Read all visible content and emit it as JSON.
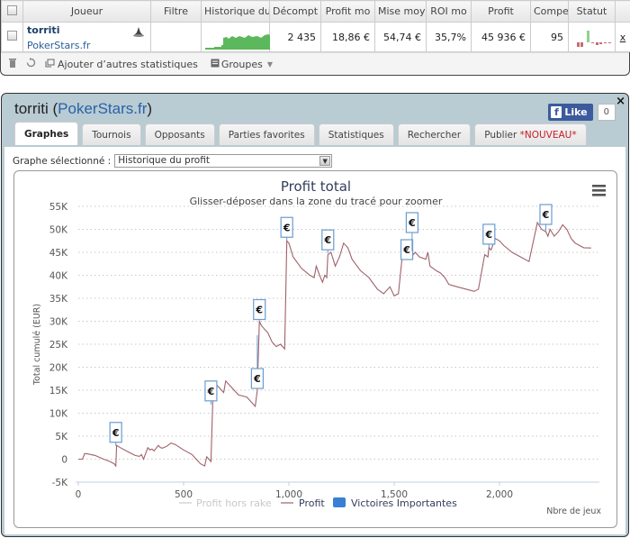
{
  "table": {
    "headers": [
      "Joueur",
      "Filtre",
      "Historique du",
      "Décompt",
      "Profit mo",
      "Mise moy",
      "ROI mo",
      "Profit",
      "Compe",
      "Statut"
    ],
    "rows": [
      {
        "player": "torriti",
        "site": "PokerStars.fr",
        "filter": "",
        "games": "2 435",
        "avg_profit": "18,86 €",
        "avg_stake": "54,74 €",
        "roi": "35,7%",
        "profit": "45 936 €",
        "ability": "95",
        "remove": "x"
      }
    ]
  },
  "toolbar": {
    "add_stats": "Ajouter d’autres statistiques",
    "groups": "Groupes"
  },
  "popup": {
    "player": "torriti",
    "site": "PokerStars.fr",
    "fb_like": "Like",
    "fb_count": "0",
    "close": "×",
    "tabs": [
      {
        "label": "Graphes",
        "active": true
      },
      {
        "label": "Tournois"
      },
      {
        "label": "Opposants"
      },
      {
        "label": "Parties favorites"
      },
      {
        "label": "Statistiques"
      },
      {
        "label": "Rechercher"
      },
      {
        "label": "Publier",
        "badge": "*NOUVEAU*"
      }
    ],
    "graph_select_label": "Graphe sélectionné :",
    "graph_select_value": "Historique du profit"
  },
  "colors": {
    "profit_line": "#a0606a",
    "marker_border": "#6a9ccf",
    "legend_victoires": "#3a7fd5",
    "panel_bg": "#b9cbd3",
    "link": "#2a62a8",
    "new_badge": "#c4202a"
  },
  "chart_data": {
    "type": "line",
    "title": "Profit total",
    "subtitle": "Glisser-déposer dans la zone du tracé pour zoomer",
    "xlabel": "Nbre de jeux",
    "ylabel": "Total cumulé (EUR)",
    "xlim": [
      0,
      2435
    ],
    "ylim": [
      -5000,
      55000
    ],
    "x_ticks": [
      "0",
      "500",
      "1,000",
      "1,500",
      "2,000"
    ],
    "y_ticks": [
      "-5K",
      "0",
      "5K",
      "10K",
      "15K",
      "20K",
      "25K",
      "30K",
      "35K",
      "40K",
      "45K",
      "50K",
      "55K"
    ],
    "grid": "horizontal dotted",
    "legend": [
      "Profit hors rake",
      "Profit",
      "Victoires Importantes"
    ],
    "legend_position": "bottom",
    "series": [
      {
        "name": "Profit",
        "x": [
          0,
          20,
          30,
          40,
          80,
          120,
          150,
          170,
          178,
          182,
          200,
          240,
          270,
          290,
          300,
          310,
          330,
          340,
          350,
          360,
          380,
          390,
          400,
          420,
          440,
          460,
          500,
          540,
          560,
          580,
          600,
          610,
          620,
          630,
          640,
          660,
          670,
          690,
          700,
          720,
          760,
          800,
          840,
          850,
          860,
          870,
          900,
          920,
          940,
          960,
          980,
          990,
          1000,
          1020,
          1060,
          1100,
          1120,
          1130,
          1150,
          1160,
          1170,
          1180,
          1185,
          1200,
          1220,
          1240,
          1260,
          1280,
          1300,
          1340,
          1380,
          1420,
          1450,
          1480,
          1500,
          1520,
          1540,
          1560,
          1570,
          1580,
          1590,
          1600,
          1620,
          1650,
          1660,
          1670,
          1700,
          1720,
          1740,
          1760,
          1800,
          1840,
          1880,
          1900,
          1930,
          1945,
          1950,
          1960,
          1980,
          2000,
          2020,
          2060,
          2100,
          2140,
          2180,
          2200,
          2220,
          2230,
          2240,
          2260,
          2280,
          2300,
          2320,
          2340,
          2360,
          2380,
          2400,
          2435
        ],
        "y": [
          0,
          0,
          1200,
          1200,
          800,
          0,
          -500,
          -1000,
          -1500,
          3000,
          2500,
          1500,
          800,
          600,
          1000,
          0,
          2500,
          2000,
          2200,
          1800,
          3000,
          2500,
          2400,
          2800,
          3500,
          3200,
          2000,
          1000,
          0,
          -1000,
          -1500,
          500,
          0,
          -500,
          15000,
          16000,
          15500,
          14500,
          17000,
          16000,
          14000,
          13500,
          11500,
          15000,
          30000,
          29000,
          27500,
          25500,
          24500,
          25000,
          24000,
          47500,
          47000,
          44000,
          41500,
          40000,
          39500,
          42000,
          39500,
          38500,
          40000,
          39500,
          44500,
          45000,
          42000,
          44000,
          47000,
          46000,
          43500,
          41000,
          39500,
          37000,
          36000,
          37500,
          35500,
          36000,
          45000,
          44000,
          45500,
          46000,
          44500,
          45000,
          44000,
          43500,
          45000,
          42000,
          41000,
          40500,
          39500,
          38000,
          37500,
          37000,
          36500,
          37000,
          44500,
          44000,
          46000,
          45500,
          48000,
          47500,
          46500,
          45000,
          44000,
          43000,
          51500,
          50000,
          49500,
          48500,
          50000,
          48500,
          49500,
          51000,
          50000,
          48000,
          47000,
          46500,
          46000,
          45936
        ]
      }
    ],
    "markers": {
      "name": "Victoires Importantes",
      "symbol": "€",
      "x": [
        178,
        630,
        850,
        860,
        990,
        1185,
        1560,
        1585,
        1950,
        2220
      ]
    }
  }
}
